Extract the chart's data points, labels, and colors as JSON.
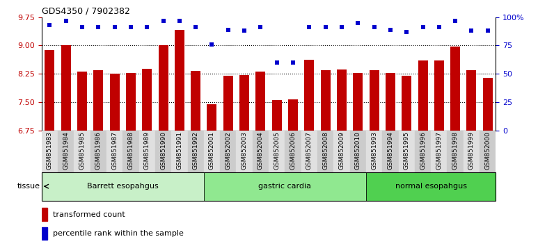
{
  "title": "GDS4350 / 7902382",
  "samples": [
    "GSM851983",
    "GSM851984",
    "GSM851985",
    "GSM851986",
    "GSM851987",
    "GSM851988",
    "GSM851989",
    "GSM851990",
    "GSM851991",
    "GSM851992",
    "GSM852001",
    "GSM852002",
    "GSM852003",
    "GSM852004",
    "GSM852005",
    "GSM852006",
    "GSM852007",
    "GSM852008",
    "GSM852009",
    "GSM852010",
    "GSM851993",
    "GSM851994",
    "GSM851995",
    "GSM851996",
    "GSM851997",
    "GSM851998",
    "GSM851999",
    "GSM852000"
  ],
  "bar_values": [
    8.88,
    9.0,
    8.3,
    8.35,
    8.26,
    8.28,
    8.38,
    9.0,
    9.42,
    8.33,
    7.45,
    8.2,
    8.22,
    8.3,
    7.55,
    7.58,
    8.63,
    8.35,
    8.36,
    8.28,
    8.35,
    8.27,
    8.2,
    8.6,
    8.6,
    8.97,
    8.35,
    8.15
  ],
  "percentile_values": [
    93,
    97,
    91,
    91,
    91,
    91,
    91,
    97,
    97,
    91,
    76,
    89,
    88,
    91,
    60,
    60,
    91,
    91,
    91,
    95,
    91,
    89,
    87,
    91,
    91,
    97,
    88,
    88
  ],
  "groups": [
    {
      "label": "Barrett esopahgus",
      "start": 0,
      "end": 10,
      "color": "#c8f0c8"
    },
    {
      "label": "gastric cardia",
      "start": 10,
      "end": 20,
      "color": "#90e890"
    },
    {
      "label": "normal esopahgus",
      "start": 20,
      "end": 28,
      "color": "#50d050"
    }
  ],
  "ylim_left": [
    6.75,
    9.75
  ],
  "ylim_right": [
    0,
    100
  ],
  "yticks_left": [
    6.75,
    7.5,
    8.25,
    9.0,
    9.75
  ],
  "yticks_right": [
    0,
    25,
    50,
    75,
    100
  ],
  "bar_color": "#c00000",
  "dot_color": "#0000cd",
  "legend_items": [
    {
      "label": "transformed count",
      "color": "#c00000"
    },
    {
      "label": "percentile rank within the sample",
      "color": "#0000cd"
    }
  ],
  "tissue_label": "tissue",
  "bar_width": 0.6,
  "tick_bg_even": "#e0e0e0",
  "tick_bg_odd": "#cccccc"
}
